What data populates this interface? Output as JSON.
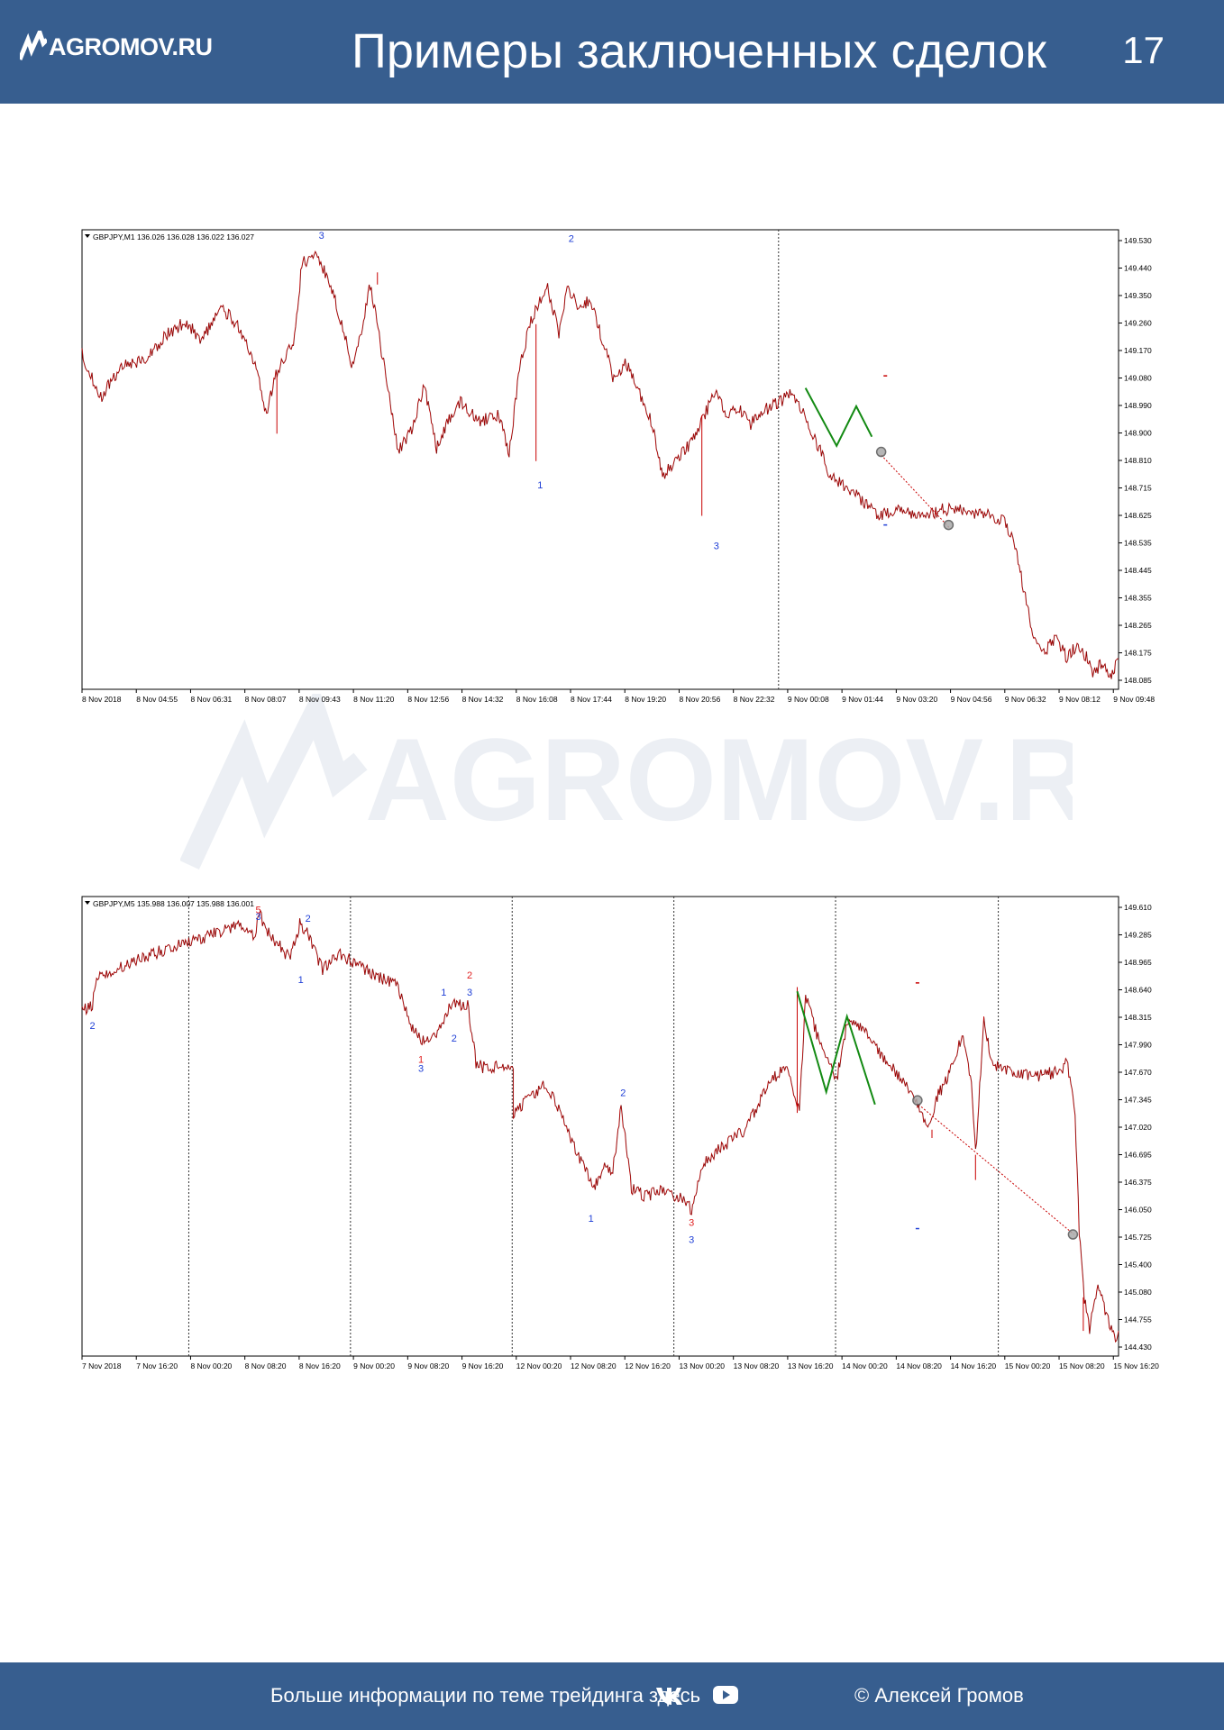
{
  "header": {
    "logo_text": "AGROMOV.RU",
    "title": "Примеры заключенных сделок",
    "page_number": "17"
  },
  "watermark": {
    "text": "AGROMOV.RU"
  },
  "footer": {
    "info_text": "Больше информации по теме трейдинга здесь",
    "vk_icon": "vk-icon",
    "youtube_icon": "youtube-icon",
    "copyright": "© Алексей Громов"
  },
  "colors": {
    "header_bg": "#375e8f",
    "candle": "#c80000",
    "wave_line": "#138a13",
    "label_blue": "#1f3fd6",
    "label_red": "#e02020"
  },
  "chart_data": [
    {
      "type": "line",
      "info": "GBPJPY,M1  136.026 136.028 136.022 136.027",
      "y_ticks": [
        "149.530",
        "149.440",
        "149.350",
        "149.260",
        "149.170",
        "149.080",
        "148.990",
        "148.900",
        "148.810",
        "148.715",
        "148.625",
        "148.535",
        "148.445",
        "148.355",
        "148.265",
        "148.175",
        "148.085"
      ],
      "ylim": [
        148.05,
        149.56
      ],
      "x_ticks": [
        "8 Nov 2018",
        "8 Nov 04:55",
        "8 Nov 06:31",
        "8 Nov 08:07",
        "8 Nov 09:43",
        "8 Nov 11:20",
        "8 Nov 12:56",
        "8 Nov 14:32",
        "8 Nov 16:08",
        "8 Nov 17:44",
        "8 Nov 19:20",
        "8 Nov 20:56",
        "8 Nov 22:32",
        "9 Nov 00:08",
        "9 Nov 01:44",
        "9 Nov 03:20",
        "9 Nov 04:56",
        "9 Nov 06:32",
        "9 Nov 08:12",
        "9 Nov 09:48"
      ],
      "x_range": [
        0,
        1000
      ],
      "day_separators": [
        672
      ],
      "price_path": [
        [
          0,
          149.15
        ],
        [
          18,
          149.01
        ],
        [
          40,
          149.12
        ],
        [
          60,
          149.13
        ],
        [
          80,
          149.21
        ],
        [
          100,
          149.26
        ],
        [
          115,
          149.2
        ],
        [
          135,
          149.3
        ],
        [
          150,
          149.25
        ],
        [
          168,
          149.1
        ],
        [
          178,
          148.95
        ],
        [
          186,
          149.08
        ],
        [
          205,
          149.2
        ],
        [
          212,
          149.45
        ],
        [
          225,
          149.48
        ],
        [
          240,
          149.38
        ],
        [
          262,
          149.1
        ],
        [
          278,
          149.38
        ],
        [
          292,
          149.1
        ],
        [
          305,
          148.83
        ],
        [
          318,
          148.9
        ],
        [
          330,
          149.05
        ],
        [
          342,
          148.84
        ],
        [
          352,
          148.92
        ],
        [
          365,
          149.0
        ],
        [
          382,
          148.93
        ],
        [
          402,
          148.95
        ],
        [
          412,
          148.82
        ],
        [
          422,
          149.1
        ],
        [
          432,
          149.25
        ],
        [
          448,
          149.38
        ],
        [
          460,
          149.22
        ],
        [
          468,
          149.38
        ],
        [
          480,
          149.3
        ],
        [
          490,
          149.33
        ],
        [
          500,
          149.22
        ],
        [
          512,
          149.08
        ],
        [
          525,
          149.12
        ],
        [
          538,
          149.02
        ],
        [
          550,
          148.92
        ],
        [
          560,
          148.75
        ],
        [
          572,
          148.8
        ],
        [
          588,
          148.86
        ],
        [
          600,
          148.95
        ],
        [
          612,
          149.03
        ],
        [
          622,
          148.95
        ],
        [
          632,
          148.98
        ],
        [
          645,
          148.92
        ],
        [
          655,
          148.96
        ],
        [
          670,
          148.99
        ],
        [
          685,
          149.02
        ],
        [
          700,
          148.93
        ],
        [
          710,
          148.85
        ],
        [
          722,
          148.75
        ],
        [
          735,
          148.72
        ],
        [
          745,
          148.7
        ],
        [
          758,
          148.65
        ],
        [
          770,
          148.62
        ],
        [
          782,
          148.64
        ],
        [
          800,
          148.63
        ],
        [
          815,
          148.62
        ],
        [
          830,
          148.64
        ],
        [
          845,
          148.64
        ],
        [
          860,
          148.63
        ],
        [
          875,
          148.62
        ],
        [
          888,
          148.61
        ],
        [
          900,
          148.53
        ],
        [
          910,
          148.35
        ],
        [
          918,
          148.22
        ],
        [
          930,
          148.18
        ],
        [
          940,
          148.22
        ],
        [
          950,
          148.15
        ],
        [
          960,
          148.2
        ],
        [
          970,
          148.15
        ],
        [
          975,
          148.1
        ],
        [
          985,
          148.14
        ],
        [
          993,
          148.09
        ],
        [
          1000,
          148.15
        ]
      ],
      "spikes": [
        {
          "x": 188,
          "to": 148.89
        },
        {
          "x": 285,
          "to": 149.42
        },
        {
          "x": 438,
          "to": 148.8
        },
        {
          "x": 598,
          "to": 148.62
        },
        {
          "x": 995,
          "to": 148.09
        }
      ],
      "wave_line": [
        [
          698,
          149.04
        ],
        [
          728,
          148.85
        ],
        [
          747,
          148.98
        ],
        [
          762,
          148.88
        ]
      ],
      "dotted_line": [
        [
          771,
          148.82
        ],
        [
          837,
          148.58
        ]
      ],
      "circles": [
        [
          771,
          148.83
        ],
        [
          836,
          148.59
        ]
      ],
      "level_marks": [
        {
          "x": 775,
          "y": 149.08
        },
        {
          "x": 775,
          "y": 148.59
        }
      ],
      "labels": [
        {
          "x": 231,
          "y": 149.53,
          "text": "3"
        },
        {
          "x": 472,
          "y": 149.52,
          "text": "2"
        },
        {
          "x": 442,
          "y": 148.71,
          "text": "1"
        },
        {
          "x": 612,
          "y": 148.51,
          "text": "3"
        }
      ]
    },
    {
      "type": "line",
      "info": "GBPJPY,M5  135.988 136.007 135.988 136.001",
      "y_ticks": [
        "149.610",
        "149.285",
        "148.965",
        "148.640",
        "148.315",
        "147.990",
        "147.670",
        "147.345",
        "147.020",
        "146.695",
        "146.375",
        "146.050",
        "145.725",
        "145.400",
        "145.080",
        "144.755",
        "144.430"
      ],
      "ylim": [
        144.3,
        149.78
      ],
      "x_ticks": [
        "7 Nov 2018",
        "7 Nov 16:20",
        "8 Nov 00:20",
        "8 Nov 08:20",
        "8 Nov 16:20",
        "9 Nov 00:20",
        "9 Nov 08:20",
        "9 Nov 16:20",
        "12 Nov 00:20",
        "12 Nov 08:20",
        "12 Nov 16:20",
        "13 Nov 00:20",
        "13 Nov 08:20",
        "13 Nov 16:20",
        "14 Nov 00:20",
        "14 Nov 08:20",
        "14 Nov 16:20",
        "15 Nov 00:20",
        "15 Nov 08:20",
        "15 Nov 16:20"
      ],
      "x_range": [
        0,
        1000
      ],
      "day_separators": [
        103,
        259,
        415,
        571,
        727,
        884
      ],
      "price_path": [
        [
          0,
          148.4
        ],
        [
          10,
          148.5
        ],
        [
          15,
          148.8
        ],
        [
          30,
          148.9
        ],
        [
          50,
          149.0
        ],
        [
          70,
          149.1
        ],
        [
          90,
          149.2
        ],
        [
          103,
          149.25
        ],
        [
          120,
          149.3
        ],
        [
          140,
          149.4
        ],
        [
          155,
          149.45
        ],
        [
          165,
          149.3
        ],
        [
          172,
          149.55
        ],
        [
          180,
          149.35
        ],
        [
          190,
          149.2
        ],
        [
          200,
          149.05
        ],
        [
          210,
          149.45
        ],
        [
          220,
          149.3
        ],
        [
          232,
          148.9
        ],
        [
          248,
          149.1
        ],
        [
          262,
          149.0
        ],
        [
          275,
          148.9
        ],
        [
          290,
          148.8
        ],
        [
          305,
          148.7
        ],
        [
          318,
          148.2
        ],
        [
          330,
          148.05
        ],
        [
          345,
          148.2
        ],
        [
          356,
          148.5
        ],
        [
          372,
          148.5
        ],
        [
          380,
          147.8
        ],
        [
          393,
          147.7
        ],
        [
          405,
          147.8
        ],
        [
          416,
          147.7
        ],
        [
          416,
          147.2
        ],
        [
          432,
          147.4
        ],
        [
          448,
          147.55
        ],
        [
          462,
          147.2
        ],
        [
          478,
          146.7
        ],
        [
          494,
          146.3
        ],
        [
          502,
          146.55
        ],
        [
          512,
          146.5
        ],
        [
          520,
          147.3
        ],
        [
          530,
          146.3
        ],
        [
          543,
          146.2
        ],
        [
          560,
          146.3
        ],
        [
          575,
          146.2
        ],
        [
          588,
          146.05
        ],
        [
          600,
          146.6
        ],
        [
          618,
          146.8
        ],
        [
          640,
          147.0
        ],
        [
          660,
          147.5
        ],
        [
          680,
          147.8
        ],
        [
          692,
          147.2
        ],
        [
          698,
          148.6
        ],
        [
          712,
          148.0
        ],
        [
          728,
          147.6
        ],
        [
          738,
          148.25
        ],
        [
          755,
          148.2
        ],
        [
          770,
          147.9
        ],
        [
          790,
          147.6
        ],
        [
          805,
          147.3
        ],
        [
          815,
          147.0
        ],
        [
          825,
          147.4
        ],
        [
          835,
          147.6
        ],
        [
          842,
          147.9
        ],
        [
          850,
          148.1
        ],
        [
          858,
          147.6
        ],
        [
          862,
          146.7
        ],
        [
          870,
          148.3
        ],
        [
          878,
          147.8
        ],
        [
          900,
          147.65
        ],
        [
          925,
          147.65
        ],
        [
          945,
          147.7
        ],
        [
          950,
          147.8
        ],
        [
          958,
          147.2
        ],
        [
          962,
          145.8
        ],
        [
          967,
          145.0
        ],
        [
          972,
          144.6
        ],
        [
          980,
          145.2
        ],
        [
          988,
          144.8
        ],
        [
          998,
          144.5
        ],
        [
          1000,
          144.6
        ]
      ],
      "spikes": [
        {
          "x": 690,
          "to": 148.7
        },
        {
          "x": 820,
          "to": 146.9
        },
        {
          "x": 862,
          "to": 146.4
        },
        {
          "x": 870,
          "to": 148.35
        },
        {
          "x": 966,
          "to": 144.6
        }
      ],
      "wave_line": [
        [
          690,
          148.65
        ],
        [
          718,
          147.45
        ],
        [
          738,
          148.35
        ],
        [
          765,
          147.3
        ]
      ],
      "dotted_line": [
        [
          807,
          147.3
        ],
        [
          957,
          145.75
        ]
      ],
      "circles": [
        [
          806,
          147.35
        ],
        [
          956,
          145.75
        ]
      ],
      "level_marks": [
        {
          "x": 806,
          "y": 148.75
        },
        {
          "x": 806,
          "y": 145.82
        }
      ],
      "labels": [
        {
          "x": 10,
          "y": 148.2,
          "text": "2",
          "color": "blue"
        },
        {
          "x": 170,
          "y": 149.58,
          "text": "5",
          "color": "red"
        },
        {
          "x": 170,
          "y": 149.5,
          "text": "3",
          "color": "blue"
        },
        {
          "x": 218,
          "y": 149.48,
          "text": "2",
          "color": "blue"
        },
        {
          "x": 211,
          "y": 148.75,
          "text": "1",
          "color": "blue"
        },
        {
          "x": 327,
          "y": 147.8,
          "text": "1",
          "color": "red"
        },
        {
          "x": 327,
          "y": 147.69,
          "text": "3",
          "color": "blue"
        },
        {
          "x": 349,
          "y": 148.6,
          "text": "1",
          "color": "blue"
        },
        {
          "x": 359,
          "y": 148.05,
          "text": "2",
          "color": "blue"
        },
        {
          "x": 374,
          "y": 148.8,
          "text": "2",
          "color": "red"
        },
        {
          "x": 374,
          "y": 148.6,
          "text": "3",
          "color": "blue"
        },
        {
          "x": 491,
          "y": 145.9,
          "text": "1",
          "color": "blue"
        },
        {
          "x": 522,
          "y": 147.4,
          "text": "2",
          "color": "blue"
        },
        {
          "x": 588,
          "y": 145.85,
          "text": "3",
          "color": "red"
        },
        {
          "x": 588,
          "y": 145.65,
          "text": "3",
          "color": "blue"
        }
      ]
    }
  ]
}
